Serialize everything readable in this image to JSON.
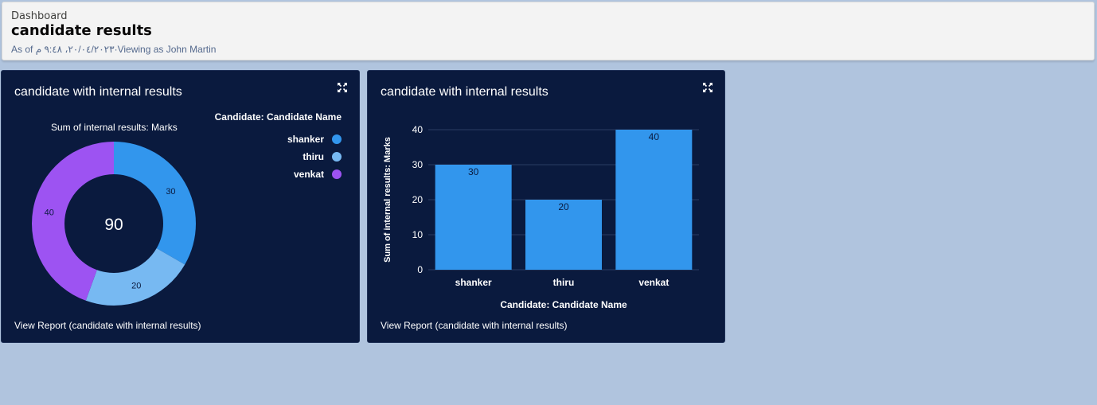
{
  "header": {
    "breadcrumb": "Dashboard",
    "title": "candidate results",
    "subtitle": "As of ٢٠/٠٤/٢٠٢٣، ٩:٤٨ م·Viewing as John Martin"
  },
  "cards": [
    {
      "title": "candidate with internal results",
      "measure_label": "Sum of internal results: Marks",
      "legend_title": "Candidate: Candidate Name",
      "view_report": "View Report (candidate with internal results)"
    },
    {
      "title": "candidate with internal results",
      "view_report": "View Report (candidate with internal results)"
    }
  ],
  "colors": {
    "shanker": "#3296ed",
    "thiru": "#77b9f2",
    "venkat": "#9d53f2",
    "card_bg": "#0a1a3e"
  },
  "chart_data": [
    {
      "type": "pie",
      "donut": true,
      "total": "90",
      "title": "Sum of internal results: Marks",
      "legend_title": "Candidate: Candidate Name",
      "legend_placement": "top-right",
      "categories": [
        "shanker",
        "thiru",
        "venkat"
      ],
      "values": [
        30,
        20,
        40
      ]
    },
    {
      "type": "bar",
      "categories": [
        "shanker",
        "thiru",
        "venkat"
      ],
      "values": [
        30,
        20,
        40
      ],
      "xlabel": "Candidate: Candidate Name",
      "ylabel": "Sum of internal results: Marks",
      "ylim": [
        0,
        40
      ],
      "yticks": [
        0,
        10,
        20,
        30,
        40
      ],
      "grid": true
    }
  ]
}
